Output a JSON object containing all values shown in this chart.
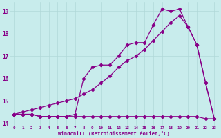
{
  "background_color": "#c8ecec",
  "grid_color": "#b0d8d8",
  "line_color": "#880088",
  "xlabel": "Windchill (Refroidissement éolien,°C)",
  "xlim": [
    -0.5,
    23.5
  ],
  "ylim": [
    13.9,
    19.4
  ],
  "yticks": [
    14,
    15,
    16,
    17,
    18,
    19
  ],
  "xticks": [
    0,
    1,
    2,
    3,
    4,
    5,
    6,
    7,
    8,
    9,
    10,
    11,
    12,
    13,
    14,
    15,
    16,
    17,
    18,
    19,
    20,
    21,
    22,
    23
  ],
  "series1_x": [
    0,
    1,
    2,
    3,
    4,
    5,
    6,
    7,
    8,
    9,
    10,
    11,
    12,
    13,
    14,
    15,
    16,
    17,
    18,
    19,
    20,
    21,
    22,
    23
  ],
  "series1_y": [
    14.4,
    14.4,
    14.4,
    14.3,
    14.3,
    14.3,
    14.3,
    14.4,
    16.0,
    16.5,
    16.6,
    16.6,
    17.0,
    17.5,
    17.6,
    17.6,
    18.4,
    19.1,
    19.0,
    19.1,
    18.3,
    17.5,
    15.8,
    14.2
  ],
  "series2_x": [
    0,
    1,
    2,
    3,
    4,
    5,
    6,
    7,
    8,
    9,
    10,
    11,
    12,
    13,
    14,
    15,
    16,
    17,
    18,
    19,
    20,
    21,
    22,
    23
  ],
  "series2_y": [
    14.4,
    14.4,
    14.4,
    14.3,
    14.3,
    14.3,
    14.3,
    14.3,
    14.3,
    14.3,
    14.3,
    14.3,
    14.3,
    14.3,
    14.3,
    14.3,
    14.3,
    14.3,
    14.3,
    14.3,
    14.3,
    14.3,
    14.2,
    14.2
  ],
  "series3_x": [
    0,
    1,
    2,
    3,
    4,
    5,
    6,
    7,
    8,
    9,
    10,
    11,
    12,
    13,
    14,
    15,
    16,
    17,
    18,
    19,
    20,
    21,
    22,
    23
  ],
  "series3_y": [
    14.4,
    14.5,
    14.6,
    14.7,
    14.8,
    14.9,
    15.0,
    15.1,
    15.3,
    15.5,
    15.8,
    16.1,
    16.5,
    16.8,
    17.0,
    17.3,
    17.7,
    18.1,
    18.5,
    18.8,
    18.3,
    17.5,
    15.8,
    14.2
  ]
}
